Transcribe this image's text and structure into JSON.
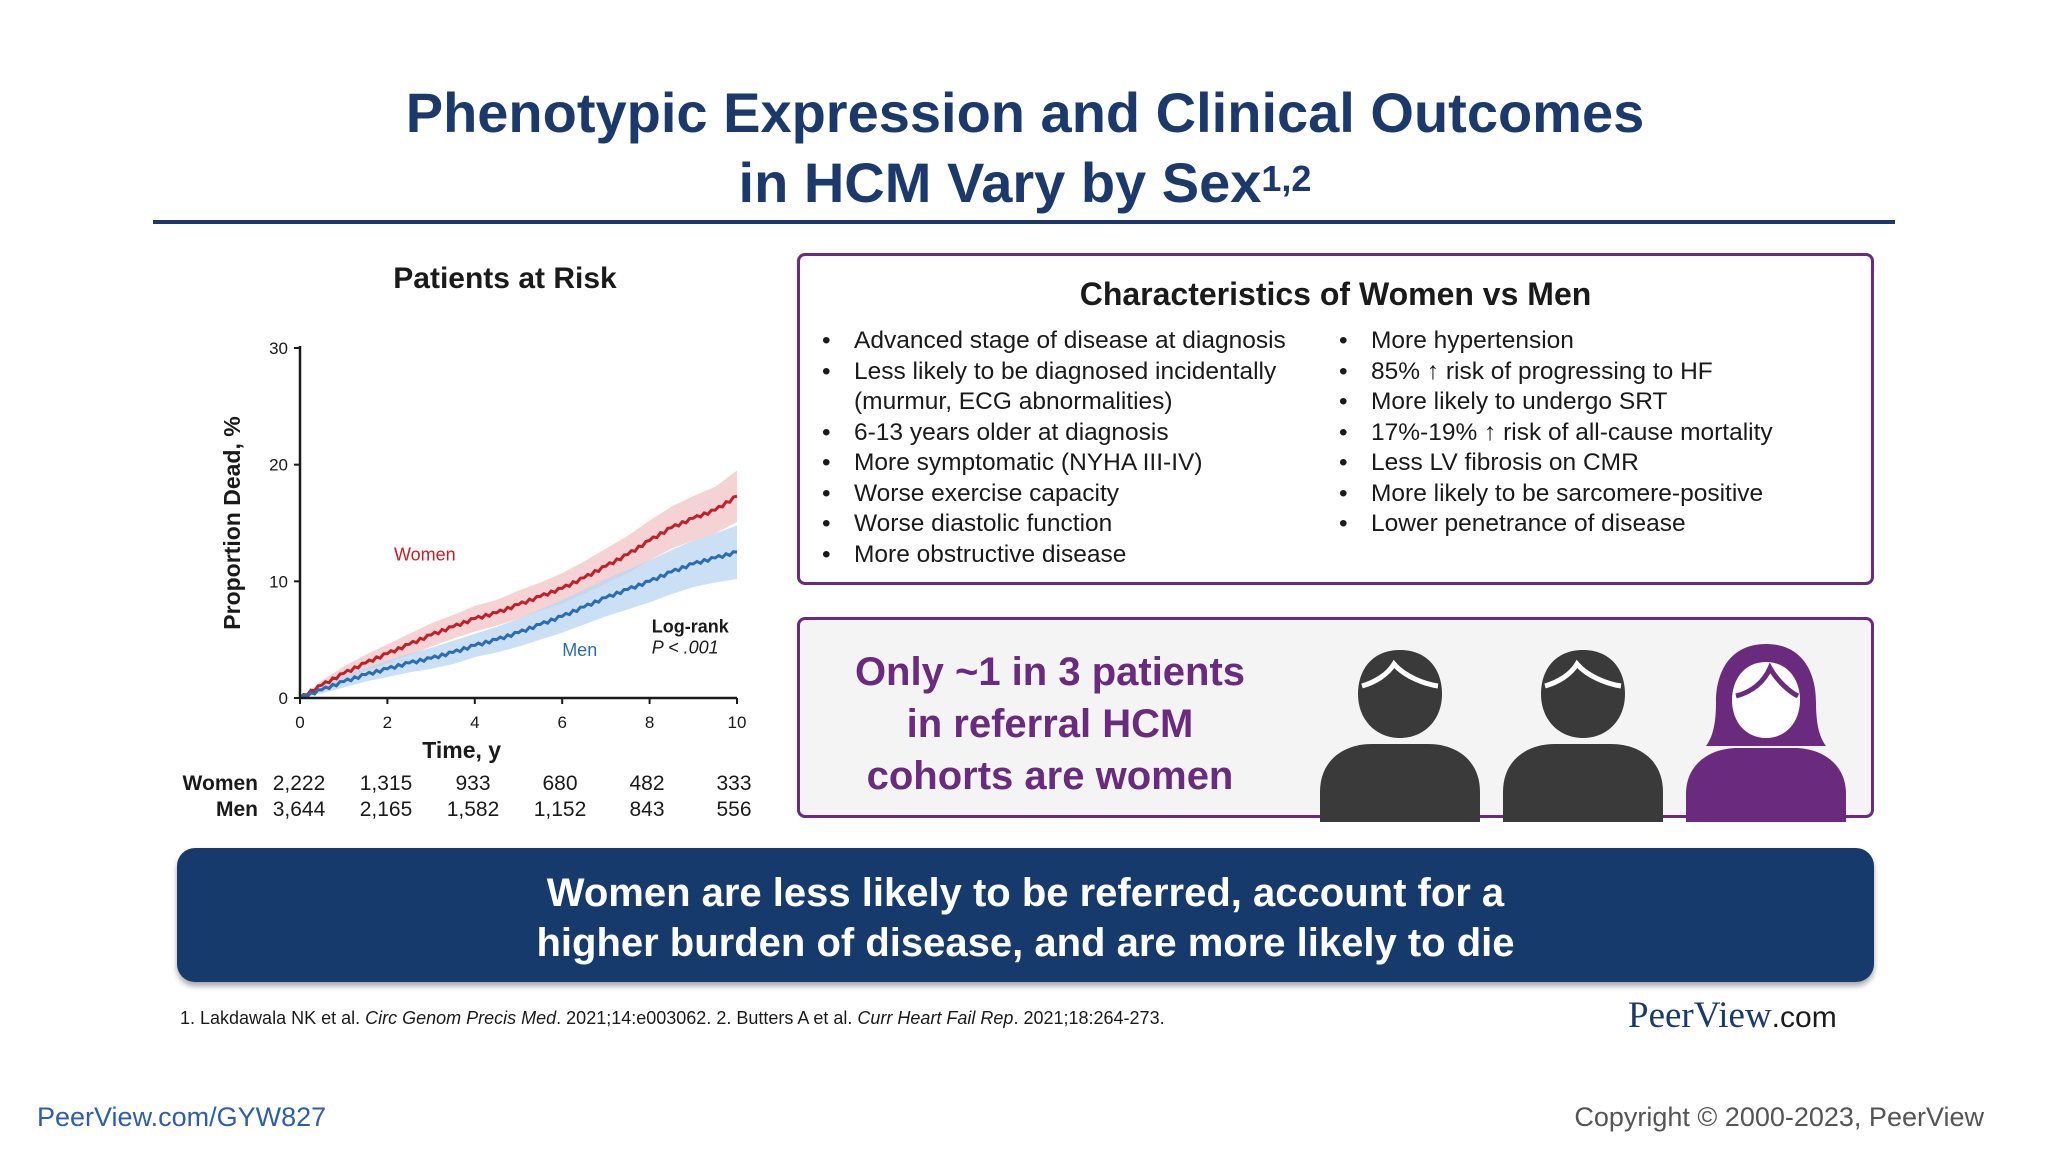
{
  "title": {
    "line1": "Phenotypic Expression and Clinical Outcomes",
    "line2": "in HCM Vary by Sex",
    "superscript": "1,2",
    "color": "#1b3a6b"
  },
  "chart_data": {
    "type": "line",
    "title": "Patients at Risk",
    "xlabel": "Time, y",
    "ylabel": "Proportion Dead, %",
    "xlim": [
      0,
      10
    ],
    "ylim": [
      0,
      30
    ],
    "xticks": [
      0,
      2,
      4,
      6,
      8,
      10
    ],
    "yticks": [
      0,
      10,
      20,
      30
    ],
    "grid": false,
    "series": [
      {
        "name": "Women",
        "color": "#c0202a",
        "band_color": "#f2c4c6",
        "x": [
          0,
          0.5,
          1,
          1.5,
          2,
          2.5,
          3,
          3.5,
          4,
          4.5,
          5,
          5.5,
          6,
          6.5,
          7,
          7.5,
          8,
          8.5,
          9,
          9.5,
          10
        ],
        "y": [
          0,
          1.1,
          2.1,
          3.0,
          3.8,
          4.6,
          5.4,
          6.1,
          6.8,
          7.3,
          8.0,
          8.7,
          9.4,
          10.3,
          11.3,
          12.3,
          13.5,
          14.6,
          15.4,
          16.1,
          17.3
        ],
        "ci_width": [
          0,
          0.4,
          0.6,
          0.7,
          0.8,
          0.9,
          1.0,
          1.0,
          1.1,
          1.1,
          1.2,
          1.2,
          1.3,
          1.4,
          1.5,
          1.6,
          1.7,
          1.8,
          1.9,
          2.0,
          2.2
        ]
      },
      {
        "name": "Men",
        "color": "#2a6db3",
        "band_color": "#b9d5f0",
        "x": [
          0,
          0.5,
          1,
          1.5,
          2,
          2.5,
          3,
          3.5,
          4,
          4.5,
          5,
          5.5,
          6,
          6.5,
          7,
          7.5,
          8,
          8.5,
          9,
          9.5,
          10
        ],
        "y": [
          0,
          0.7,
          1.4,
          2.0,
          2.5,
          3.0,
          3.4,
          3.9,
          4.5,
          5.0,
          5.6,
          6.3,
          7.0,
          7.8,
          8.6,
          9.3,
          10.0,
          10.8,
          11.5,
          12.0,
          12.5
        ],
        "ci_width": [
          0,
          0.3,
          0.5,
          0.6,
          0.7,
          0.8,
          0.9,
          1.0,
          1.0,
          1.1,
          1.2,
          1.3,
          1.4,
          1.5,
          1.6,
          1.7,
          1.8,
          1.9,
          2.0,
          2.1,
          2.3
        ]
      }
    ],
    "annotations": [
      {
        "text": "Women",
        "color": "#c0202a"
      },
      {
        "text": "Men",
        "color": "#2a6db3"
      },
      {
        "text": "Log-rank",
        "color": "#1a1a1a"
      },
      {
        "text": "P < .001",
        "color": "#1a1a1a"
      }
    ]
  },
  "risk_table": {
    "times": [
      0,
      2,
      4,
      6,
      8,
      10
    ],
    "rows": [
      {
        "label": "Women",
        "values": [
          "2,222",
          "1,315",
          "933",
          "680",
          "482",
          "333"
        ]
      },
      {
        "label": "Men",
        "values": [
          "3,644",
          "2,165",
          "1,582",
          "1,152",
          "843",
          "556"
        ]
      }
    ]
  },
  "characteristics": {
    "title": "Characteristics of Women vs Men",
    "left": [
      {
        "text": "Advanced stage of disease at diagnosis",
        "bullet": true
      },
      {
        "text": "Less likely to be diagnosed incidentally",
        "bullet": true
      },
      {
        "text": "(murmur, ECG abnormalities)",
        "bullet": false
      },
      {
        "text": "6-13 years older at diagnosis",
        "bullet": true
      },
      {
        "text": "More symptomatic (NYHA III-IV)",
        "bullet": true
      },
      {
        "text": "Worse exercise capacity",
        "bullet": true
      },
      {
        "text": "Worse diastolic function",
        "bullet": true
      },
      {
        "text": "More obstructive disease",
        "bullet": true
      }
    ],
    "right": [
      {
        "text": "More hypertension",
        "bullet": true
      },
      {
        "text": "85% ↑ risk of progressing to HF",
        "bullet": true
      },
      {
        "text": "More likely to undergo SRT",
        "bullet": true
      },
      {
        "text": "17%-19% ↑ risk of all-cause mortality",
        "bullet": true
      },
      {
        "text": "Less LV fibrosis on CMR",
        "bullet": true
      },
      {
        "text": "More likely to be sarcomere-positive",
        "bullet": true
      },
      {
        "text": "Lower penetrance of disease",
        "bullet": true
      }
    ]
  },
  "callout": {
    "line1": "Only ~1 in 3 patients",
    "line2": "in referral HCM",
    "line3": "cohorts are women",
    "color": "#6a2a7e",
    "icons": [
      "man-icon",
      "man-icon",
      "woman-icon"
    ],
    "man_color": "#3a3a3a",
    "woman_color": "#6a2a7e"
  },
  "banner": {
    "line1": "Women are less likely to be referred, account for a",
    "line2": "higher burden of disease, and are more likely to die",
    "color": "#153a6b"
  },
  "references": {
    "r1_authors": "1. Lakdawala NK et al. ",
    "r1_journal": "Circ Genom Precis Med",
    "r1_rest": ". 2021;14:e003062. 2. Butters A et al. ",
    "r2_journal": "Curr Heart Fail Rep",
    "r2_rest": ". 2021;18:264-273."
  },
  "logo": {
    "main": "PeerView",
    "suffix": ".com"
  },
  "footer": {
    "link": "PeerView.com/GYW827",
    "copyright": "Copyright © 2000-2023, PeerView"
  }
}
